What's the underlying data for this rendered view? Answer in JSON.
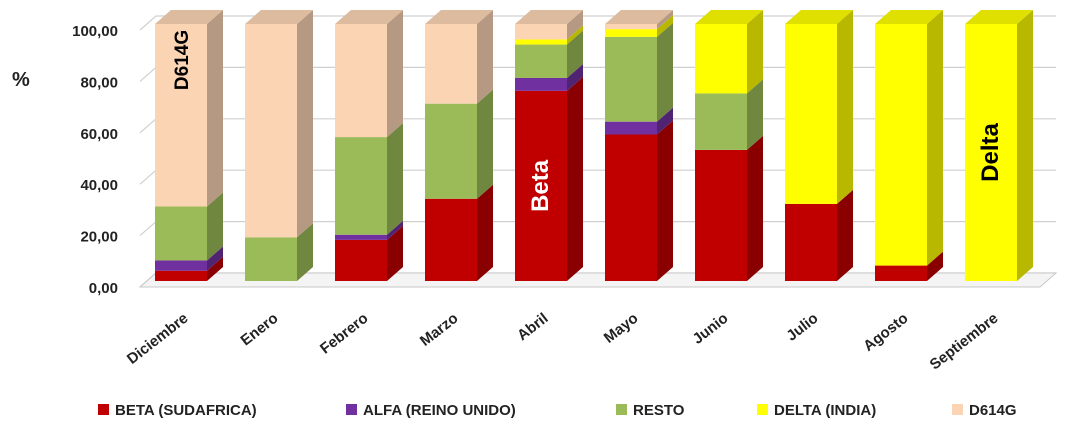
{
  "chart_data": {
    "type": "bar",
    "stacked": true,
    "three_d": true,
    "ylabel": "%",
    "ylim": [
      0,
      100
    ],
    "yticks": [
      "0,00",
      "20,00",
      "40,00",
      "60,00",
      "80,00",
      "100,00"
    ],
    "grid": true,
    "legend_position": "bottom",
    "categories": [
      "Diciembre",
      "Enero",
      "Febrero",
      "Marzo",
      "Abril",
      "Mayo",
      "Junio",
      "Julio",
      "Agosto",
      "Septiembre"
    ],
    "series": [
      {
        "name": "BETA (SUDAFRICA)",
        "color": "#c00000",
        "values": [
          4,
          0,
          16,
          32,
          74,
          57,
          51,
          30,
          6,
          0
        ]
      },
      {
        "name": "ALFA (REINO UNIDO)",
        "color": "#7030a0",
        "values": [
          4,
          0,
          2,
          0,
          5,
          5,
          0,
          0,
          0,
          0
        ]
      },
      {
        "name": "RESTO",
        "color": "#9bbb59",
        "values": [
          21,
          17,
          38,
          37,
          13,
          33,
          22,
          0,
          0,
          0
        ]
      },
      {
        "name": "DELTA (INDIA)",
        "color": "#ffff00",
        "values": [
          0,
          0,
          0,
          0,
          2,
          3,
          27,
          70,
          94,
          100
        ]
      },
      {
        "name": "D614G",
        "color": "#fbd4b4",
        "values": [
          71,
          83,
          44,
          31,
          6,
          2,
          0,
          0,
          0,
          0
        ]
      }
    ],
    "annotations": [
      {
        "text": "D614G",
        "category": "Diciembre",
        "y": 86,
        "rotate": true,
        "color": "#000000"
      },
      {
        "text": "Beta",
        "category": "Abril",
        "y": 37,
        "rotate": true,
        "color": "#ffffff"
      },
      {
        "text": "Delta",
        "category": "Septiembre",
        "y": 50,
        "rotate": true,
        "color": "#000000"
      }
    ]
  }
}
